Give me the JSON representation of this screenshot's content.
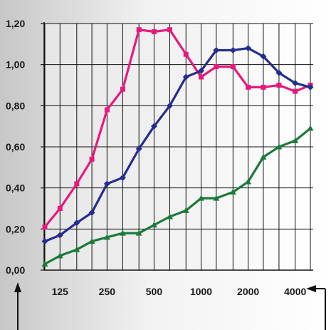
{
  "chart_data": {
    "type": "line",
    "title": "",
    "xlabel": "",
    "ylabel": "",
    "x_scale": "log",
    "ylim": [
      0,
      1.2
    ],
    "grid": true,
    "legend": "none",
    "y_ticks": [
      0.0,
      0.2,
      0.4,
      0.6,
      0.8,
      1.0,
      1.2
    ],
    "y_tick_labels": [
      "0,00",
      "0,20",
      "0,40",
      "0,60",
      "0,80",
      "1,00",
      "1,20"
    ],
    "x_ticks": [
      125,
      250,
      500,
      1000,
      2000,
      4000
    ],
    "x_tick_labels": [
      "125",
      "250",
      "500",
      "1000",
      "2000",
      "4000"
    ],
    "x": [
      100,
      125,
      160,
      200,
      250,
      315,
      400,
      500,
      630,
      800,
      1000,
      1250,
      1600,
      2000,
      2500,
      3150,
      4000,
      5000
    ],
    "series": [
      {
        "color": "#e8197e",
        "marker": "square",
        "values": [
          0.21,
          0.3,
          0.42,
          0.54,
          0.78,
          0.88,
          1.17,
          1.16,
          1.17,
          1.05,
          0.94,
          0.99,
          0.99,
          0.89,
          0.89,
          0.9,
          0.87,
          0.9
        ]
      },
      {
        "color": "#232d8c",
        "marker": "diamond",
        "values": [
          0.14,
          0.17,
          0.23,
          0.28,
          0.42,
          0.45,
          0.59,
          0.7,
          0.8,
          0.94,
          0.97,
          1.07,
          1.07,
          1.08,
          1.04,
          0.96,
          0.91,
          0.89
        ]
      },
      {
        "color": "#1b7a3a",
        "marker": "triangle",
        "values": [
          0.03,
          0.07,
          0.1,
          0.14,
          0.16,
          0.18,
          0.18,
          0.22,
          0.26,
          0.29,
          0.35,
          0.35,
          0.38,
          0.43,
          0.55,
          0.6,
          0.63,
          0.69
        ]
      }
    ]
  }
}
